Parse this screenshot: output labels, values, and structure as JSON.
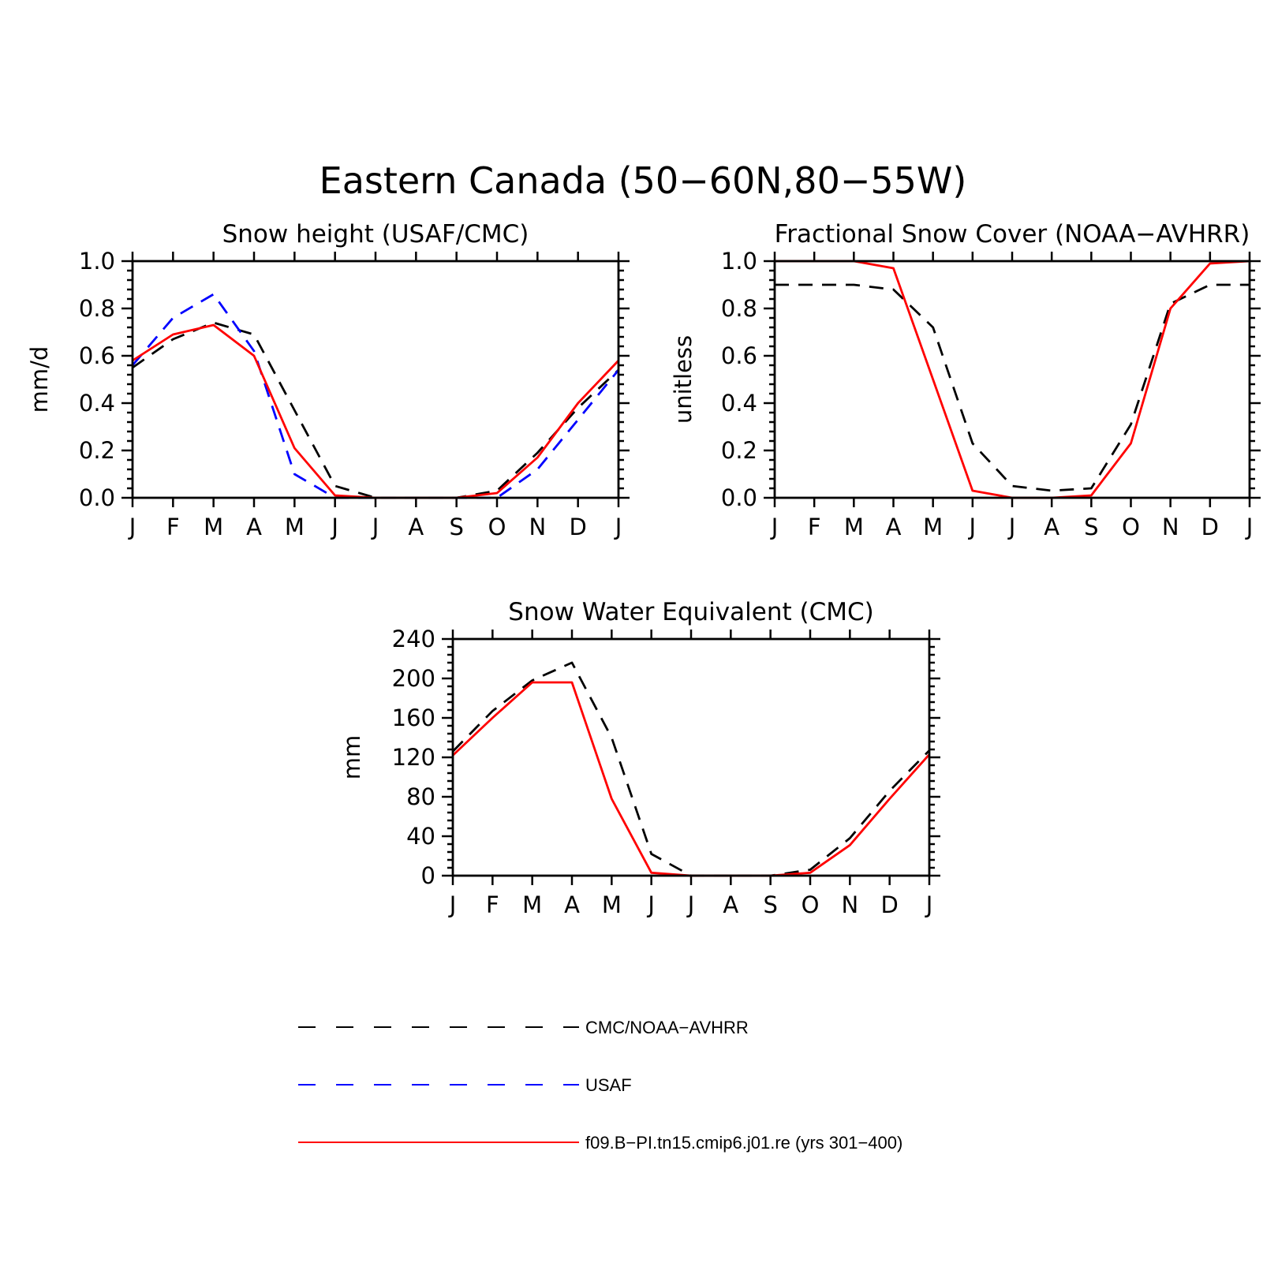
{
  "figure": {
    "title": "Eastern Canada (50−60N,80−55W)"
  },
  "chart_data": [
    {
      "type": "line",
      "id": "snow-height",
      "title": "Snow height (USAF/CMC)",
      "ylabel": "mm/d",
      "xlabel": "",
      "x_tick_labels": [
        "J",
        "F",
        "M",
        "A",
        "M",
        "J",
        "J",
        "A",
        "S",
        "O",
        "N",
        "D",
        "J"
      ],
      "ylim": [
        0,
        1.0
      ],
      "y_ticks": [
        0.0,
        0.2,
        0.4,
        0.6,
        0.8,
        1.0
      ],
      "y_tick_labels": [
        "0.0",
        "0.2",
        "0.4",
        "0.6",
        "0.8",
        "1.0"
      ],
      "grid": false,
      "series": [
        {
          "key": "obs-cmc",
          "color": "#000000",
          "dash": "dashed",
          "values": [
            0.55,
            0.67,
            0.74,
            0.69,
            0.37,
            0.05,
            0.0,
            0.0,
            0.0,
            0.03,
            0.19,
            0.38,
            0.54
          ]
        },
        {
          "key": "obs-usaf",
          "color": "#0000ff",
          "dash": "dashed",
          "values": [
            0.56,
            0.76,
            0.86,
            0.62,
            0.1,
            0.0,
            0.0,
            0.0,
            0.0,
            0.0,
            0.12,
            0.33,
            0.54
          ]
        },
        {
          "key": "model",
          "color": "#ff0000",
          "dash": "solid",
          "values": [
            0.58,
            0.69,
            0.73,
            0.6,
            0.21,
            0.01,
            0.0,
            0.0,
            0.0,
            0.02,
            0.17,
            0.4,
            0.58
          ]
        }
      ]
    },
    {
      "type": "line",
      "id": "fractional-snow-cover",
      "title": "Fractional Snow Cover (NOAA−AVHRR)",
      "ylabel": "unitless",
      "xlabel": "",
      "x_tick_labels": [
        "J",
        "F",
        "M",
        "A",
        "M",
        "J",
        "J",
        "A",
        "S",
        "O",
        "N",
        "D",
        "J"
      ],
      "ylim": [
        0,
        1.0
      ],
      "y_ticks": [
        0.0,
        0.2,
        0.4,
        0.6,
        0.8,
        1.0
      ],
      "y_tick_labels": [
        "0.0",
        "0.2",
        "0.4",
        "0.6",
        "0.8",
        "1.0"
      ],
      "grid": false,
      "series": [
        {
          "key": "obs-cmc",
          "color": "#000000",
          "dash": "dashed",
          "values": [
            0.9,
            0.9,
            0.9,
            0.88,
            0.72,
            0.23,
            0.05,
            0.03,
            0.04,
            0.31,
            0.82,
            0.9,
            0.9
          ]
        },
        {
          "key": "model",
          "color": "#ff0000",
          "dash": "solid",
          "values": [
            1.0,
            1.0,
            1.0,
            0.97,
            0.5,
            0.03,
            0.0,
            0.0,
            0.01,
            0.23,
            0.8,
            0.99,
            1.0
          ]
        }
      ]
    },
    {
      "type": "line",
      "id": "snow-water-equivalent",
      "title": "Snow Water Equivalent (CMC)",
      "ylabel": "mm",
      "xlabel": "",
      "x_tick_labels": [
        "J",
        "F",
        "M",
        "A",
        "M",
        "J",
        "J",
        "A",
        "S",
        "O",
        "N",
        "D",
        "J"
      ],
      "ylim": [
        0,
        240
      ],
      "y_ticks": [
        0,
        40,
        80,
        120,
        160,
        200,
        240
      ],
      "y_tick_labels": [
        "0",
        "40",
        "80",
        "120",
        "160",
        "200",
        "240"
      ],
      "grid": false,
      "series": [
        {
          "key": "obs-cmc",
          "color": "#000000",
          "dash": "dashed",
          "values": [
            126,
            167,
            198,
            216,
            140,
            22,
            0,
            0,
            0,
            6,
            38,
            86,
            127
          ]
        },
        {
          "key": "model",
          "color": "#ff0000",
          "dash": "solid",
          "values": [
            122,
            160,
            196,
            196,
            78,
            3,
            0,
            0,
            0,
            3,
            31,
            78,
            123
          ]
        }
      ]
    }
  ],
  "legend": {
    "placement": "bottom",
    "entries": [
      {
        "key": "obs-cmc",
        "label": "CMC/NOAA−AVHRR",
        "color": "#000000",
        "dash": "long-dashed"
      },
      {
        "key": "obs-usaf",
        "label": "USAF",
        "color": "#0000ff",
        "dash": "long-dashed"
      },
      {
        "key": "model",
        "label": "f09.B−PI.tn15.cmip6.j01.re (yrs 301−400)",
        "color": "#ff0000",
        "dash": "solid"
      }
    ]
  }
}
